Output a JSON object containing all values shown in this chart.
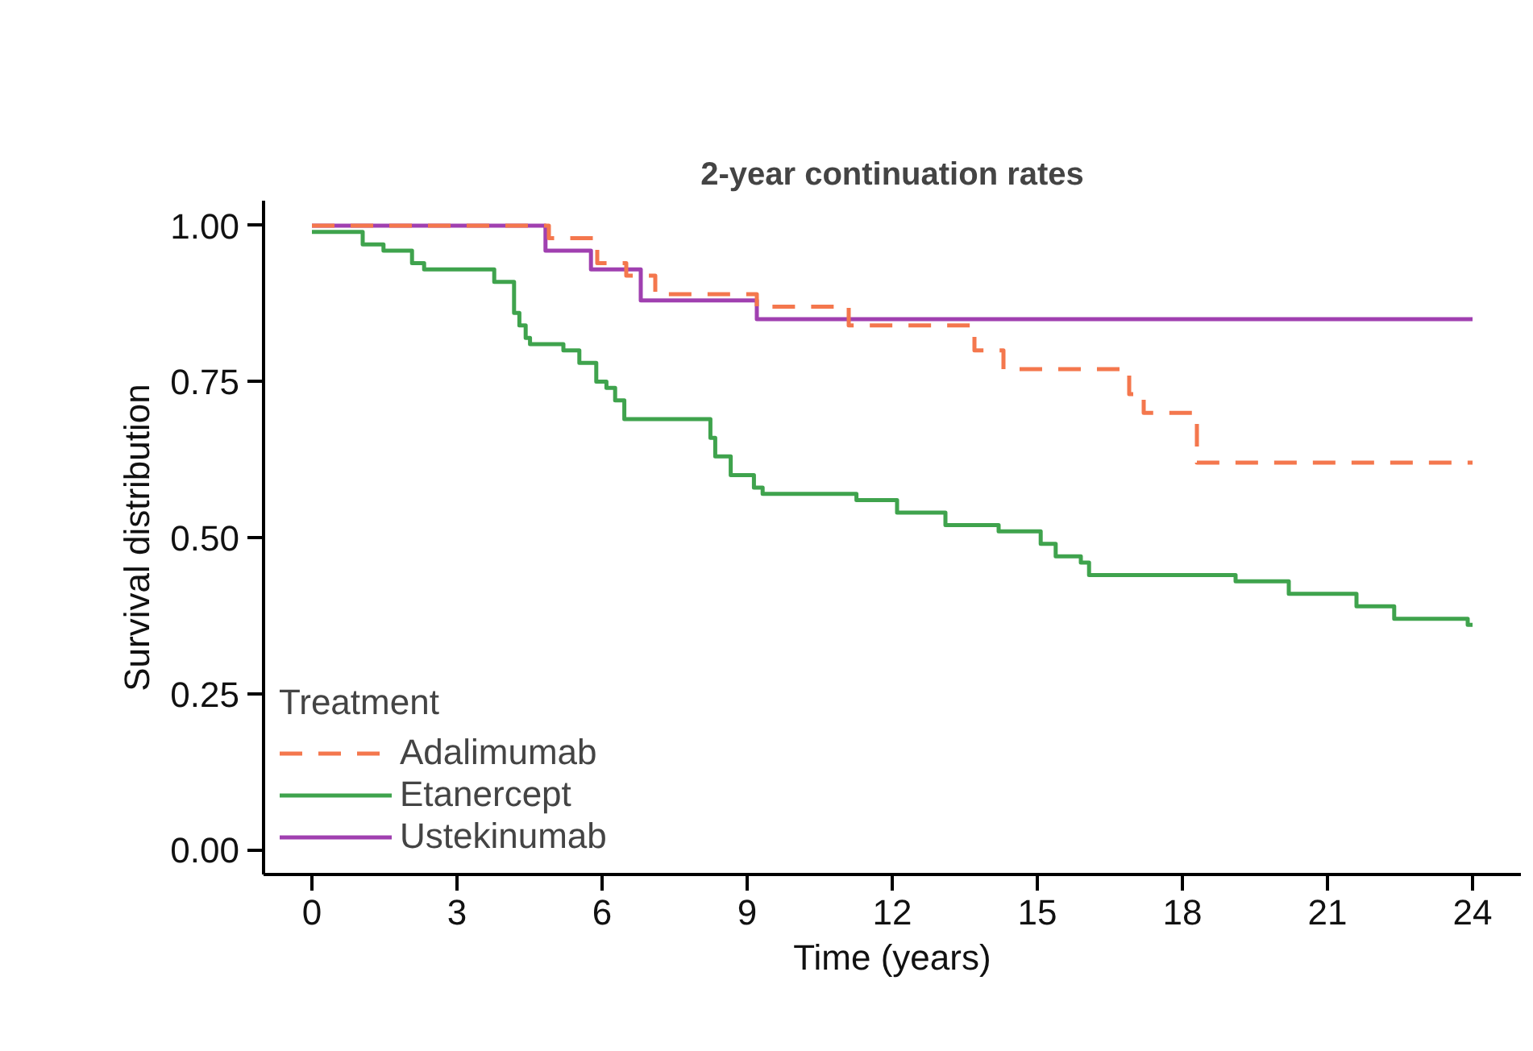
{
  "chart_data": {
    "type": "step",
    "title": "2-year continuation rates",
    "xlabel": "Time (years)",
    "ylabel": "Survival distribution",
    "legend_title": "Treatment",
    "legend": "bottom left",
    "grid": false,
    "xlim": [
      -1,
      25
    ],
    "ylim": [
      -0.04,
      1.04
    ],
    "xticks": [
      0,
      3,
      6,
      9,
      12,
      15,
      18,
      21,
      24
    ],
    "yticks": [
      {
        "value": 0,
        "label": "0.00"
      },
      {
        "value": 0.25,
        "label": "0.25"
      },
      {
        "value": 0.5,
        "label": "0.50"
      },
      {
        "value": 0.75,
        "label": "0.75"
      },
      {
        "value": 1,
        "label": "1.00"
      }
    ],
    "series": [
      {
        "name": "Adalimumab",
        "color": "#f4774d",
        "line_style": "dashed",
        "x": [
          0,
          4.9,
          5.9,
          6.5,
          7.1,
          9.2,
          11.1,
          13.7,
          14.3,
          16.9,
          17.2,
          18.3,
          24
        ],
        "values": [
          1.0,
          0.98,
          0.94,
          0.92,
          0.89,
          0.87,
          0.84,
          0.8,
          0.77,
          0.73,
          0.7,
          0.62,
          0.62
        ]
      },
      {
        "name": "Etanercept",
        "color": "#3fa34d",
        "line_style": "solid",
        "x": [
          0,
          1.05,
          1.48,
          2.07,
          2.32,
          3.77,
          4.18,
          4.29,
          4.42,
          4.51,
          5.2,
          5.53,
          5.88,
          6.09,
          6.27,
          6.46,
          8.24,
          8.34,
          8.66,
          9.14,
          9.32,
          11.26,
          12.1,
          13.1,
          14.2,
          15.07,
          15.38,
          15.9,
          16.07,
          19.1,
          20.2,
          21.6,
          22.38,
          23.9,
          24
        ],
        "values": [
          0.99,
          0.97,
          0.96,
          0.94,
          0.93,
          0.91,
          0.86,
          0.84,
          0.82,
          0.81,
          0.8,
          0.78,
          0.75,
          0.74,
          0.72,
          0.69,
          0.66,
          0.63,
          0.6,
          0.58,
          0.57,
          0.56,
          0.54,
          0.52,
          0.51,
          0.49,
          0.47,
          0.46,
          0.44,
          0.43,
          0.41,
          0.39,
          0.37,
          0.36,
          0.36
        ]
      },
      {
        "name": "Ustekinumab",
        "color": "#a040b0",
        "line_style": "solid",
        "x": [
          0,
          4.83,
          5.77,
          6.8,
          9.2,
          24
        ],
        "values": [
          1.0,
          0.96,
          0.93,
          0.88,
          0.85,
          0.85
        ]
      }
    ]
  }
}
